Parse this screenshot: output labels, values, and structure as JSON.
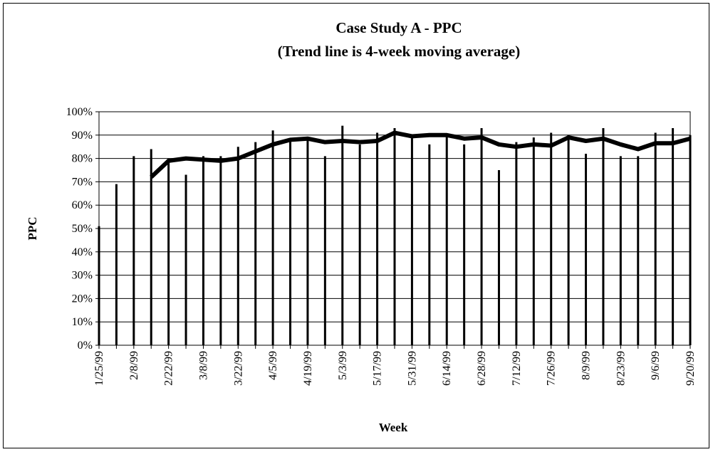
{
  "chart_data": {
    "type": "bar",
    "title": "Case Study A - PPC",
    "subtitle": "(Trend line is 4-week moving average)",
    "x_label": "Week",
    "y_label": "PPC",
    "categories": [
      "1/25/99",
      null,
      "2/8/99",
      null,
      "2/22/99",
      null,
      "3/8/99",
      null,
      "3/22/99",
      null,
      "4/5/99",
      null,
      "4/19/99",
      null,
      "5/3/99",
      null,
      "5/17/99",
      null,
      "5/31/99",
      null,
      "6/14/99",
      null,
      "6/28/99",
      null,
      "7/12/99",
      null,
      "7/26/99",
      null,
      "8/9/99",
      null,
      "8/23/99",
      null,
      "9/6/99",
      null,
      "9/20/99"
    ],
    "series": [
      {
        "type": "bar",
        "color": "#000000",
        "values": [
          51,
          69,
          81,
          84,
          80,
          73,
          81,
          81,
          85,
          87,
          92,
          88,
          89,
          81,
          94,
          86,
          91,
          93,
          90,
          86,
          90,
          86,
          93,
          75,
          87,
          89,
          91,
          90,
          82,
          93,
          81,
          81,
          91,
          93,
          90
        ]
      },
      {
        "type": "line",
        "color": "#000000",
        "values": [
          null,
          null,
          null,
          72,
          79,
          80,
          79.5,
          79,
          80,
          83,
          86,
          88,
          88.5,
          87,
          87.5,
          87,
          87.5,
          91,
          89.5,
          90,
          90,
          88.5,
          89,
          86,
          85,
          86,
          85.5,
          89,
          87.5,
          88.5,
          86,
          84,
          86.5,
          86.5,
          88.5
        ]
      }
    ],
    "ylim": [
      0,
      100
    ],
    "yticks": [
      {
        "value": 0,
        "label": "0%"
      },
      {
        "value": 10,
        "label": "10%"
      },
      {
        "value": 20,
        "label": "20%"
      },
      {
        "value": 30,
        "label": "30%"
      },
      {
        "value": 40,
        "label": "40%"
      },
      {
        "value": 50,
        "label": "50%"
      },
      {
        "value": 60,
        "label": "60%"
      },
      {
        "value": 70,
        "label": "70%"
      },
      {
        "value": 80,
        "label": "80%"
      },
      {
        "value": 90,
        "label": "90%"
      },
      {
        "value": 100,
        "label": "100%"
      }
    ],
    "grid": true
  }
}
